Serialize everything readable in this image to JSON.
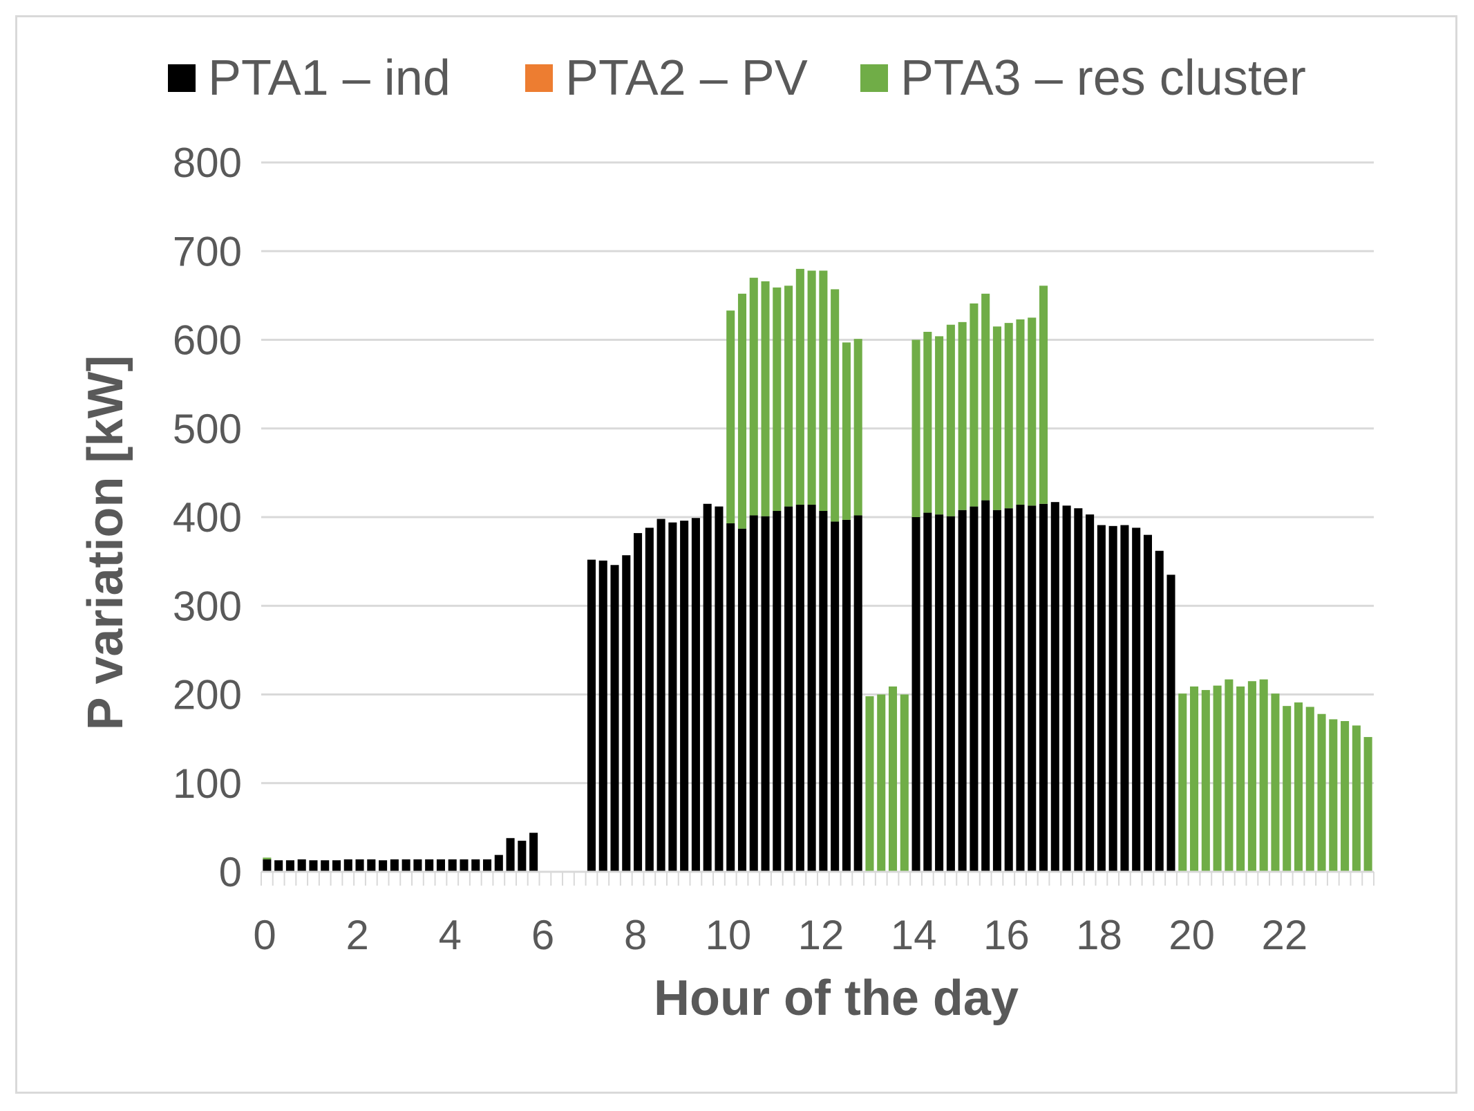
{
  "chart_data": {
    "type": "bar",
    "stacked": true,
    "title": "",
    "xlabel": "Hour of the day",
    "ylabel": "P variation [kW]",
    "ylim": [
      0,
      800
    ],
    "yticks": [
      "0",
      "100",
      "200",
      "300",
      "400",
      "500",
      "600",
      "700",
      "800"
    ],
    "xlim": [
      0,
      24
    ],
    "xticks": [
      "0",
      "2",
      "4",
      "6",
      "8",
      "10",
      "12",
      "14",
      "16",
      "18",
      "20",
      "22"
    ],
    "grid": true,
    "legend_position": "top",
    "interval_hours": 0.25,
    "colors": {
      "PTA1 – ind": "#000000",
      "PTA2 – PV": "#ed7d31",
      "PTA3 – res cluster": "#70ad47"
    },
    "series": [
      {
        "name": "PTA1 – ind",
        "values": [
          14,
          13,
          13,
          14,
          13,
          13,
          13,
          14,
          14,
          14,
          13,
          14,
          14,
          14,
          14,
          14,
          14,
          14,
          14,
          14,
          19,
          38,
          35,
          44,
          0,
          0,
          0,
          0,
          352,
          351,
          346,
          357,
          382,
          388,
          398,
          394,
          396,
          399,
          415,
          412,
          393,
          387,
          402,
          401,
          407,
          412,
          414,
          414,
          407,
          395,
          397,
          402,
          0,
          0,
          0,
          0,
          400,
          405,
          403,
          401,
          408,
          412,
          419,
          408,
          410,
          414,
          413,
          415,
          417,
          413,
          410,
          403,
          391,
          390,
          391,
          388,
          380,
          362,
          335,
          0,
          0,
          0,
          0,
          0,
          0,
          0,
          0,
          0,
          0,
          0,
          0,
          0,
          0,
          0,
          0,
          0
        ]
      },
      {
        "name": "PTA2 – PV",
        "values": [
          0,
          0,
          0,
          0,
          0,
          0,
          0,
          0,
          0,
          0,
          0,
          0,
          0,
          0,
          0,
          0,
          0,
          0,
          0,
          0,
          0,
          0,
          0,
          0,
          0,
          0,
          0,
          0,
          0,
          0,
          0,
          0,
          0,
          0,
          0,
          0,
          0,
          0,
          0,
          0,
          0,
          0,
          0,
          0,
          0,
          0,
          0,
          0,
          0,
          0,
          0,
          0,
          0,
          0,
          0,
          0,
          0,
          0,
          0,
          0,
          0,
          0,
          0,
          0,
          0,
          0,
          0,
          0,
          0,
          0,
          0,
          0,
          0,
          0,
          0,
          0,
          0,
          0,
          0,
          0,
          0,
          0,
          0,
          0,
          0,
          0,
          0,
          0,
          0,
          0,
          0,
          0,
          0,
          0,
          0,
          0
        ]
      },
      {
        "name": "PTA3 – res cluster",
        "values": [
          2,
          0,
          0,
          0,
          0,
          0,
          0,
          0,
          0,
          0,
          0,
          0,
          0,
          0,
          0,
          0,
          0,
          0,
          0,
          0,
          0,
          0,
          0,
          0,
          0,
          0,
          0,
          0,
          0,
          0,
          0,
          0,
          0,
          0,
          0,
          0,
          0,
          0,
          0,
          0,
          240,
          265,
          268,
          265,
          252,
          249,
          266,
          264,
          271,
          262,
          200,
          199,
          198,
          200,
          209,
          200,
          200,
          204,
          201,
          216,
          212,
          229,
          233,
          207,
          209,
          209,
          212,
          246,
          0,
          0,
          0,
          0,
          0,
          0,
          0,
          0,
          0,
          0,
          0,
          201,
          209,
          205,
          210,
          217,
          209,
          215,
          217,
          201,
          187,
          191,
          186,
          178,
          172,
          170,
          165,
          152
        ]
      }
    ]
  }
}
